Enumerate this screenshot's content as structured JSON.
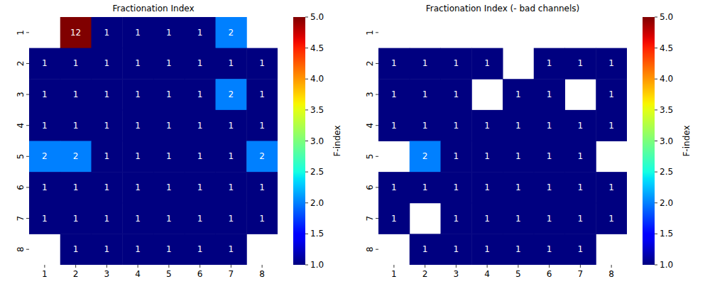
{
  "chart_data": [
    {
      "type": "heatmap",
      "title": "Fractionation Index",
      "x": [
        1,
        2,
        3,
        4,
        5,
        6,
        7,
        8
      ],
      "y": [
        1,
        2,
        3,
        4,
        5,
        6,
        7,
        8
      ],
      "values": [
        [
          null,
          12,
          1,
          1,
          1,
          1,
          2,
          null
        ],
        [
          1,
          1,
          1,
          1,
          1,
          1,
          1,
          1
        ],
        [
          1,
          1,
          1,
          1,
          1,
          1,
          2,
          1
        ],
        [
          1,
          1,
          1,
          1,
          1,
          1,
          1,
          1
        ],
        [
          2,
          2,
          1,
          1,
          1,
          1,
          1,
          2
        ],
        [
          1,
          1,
          1,
          1,
          1,
          1,
          1,
          1
        ],
        [
          1,
          1,
          1,
          1,
          1,
          1,
          1,
          1
        ],
        [
          null,
          1,
          1,
          1,
          1,
          1,
          1,
          null
        ]
      ],
      "data_labels": true,
      "colorbar": {
        "label": "F-index",
        "range": [
          1,
          5
        ],
        "ticks": [
          {
            "value": 1,
            "label": "1.0"
          },
          {
            "value": 1.5,
            "label": "1.5"
          },
          {
            "value": 2,
            "label": "2.0"
          },
          {
            "value": 2.5,
            "label": "2.5"
          },
          {
            "value": 3,
            "label": "3.0"
          },
          {
            "value": 3.5,
            "label": "3.5"
          },
          {
            "value": 4,
            "label": "4.0"
          },
          {
            "value": 4.5,
            "label": "4.5"
          },
          {
            "value": 5,
            "label": "5.0"
          }
        ]
      }
    },
    {
      "type": "heatmap",
      "title": "Fractionation Index (- bad channels)",
      "x": [
        1,
        2,
        3,
        4,
        5,
        6,
        7,
        8
      ],
      "y": [
        1,
        2,
        3,
        4,
        5,
        6,
        7,
        8
      ],
      "values": [
        [
          null,
          null,
          null,
          null,
          null,
          null,
          null,
          null
        ],
        [
          1,
          1,
          1,
          1,
          null,
          1,
          1,
          1
        ],
        [
          1,
          1,
          1,
          null,
          1,
          1,
          null,
          1
        ],
        [
          1,
          1,
          1,
          1,
          1,
          1,
          1,
          1
        ],
        [
          null,
          2,
          1,
          1,
          1,
          1,
          1,
          null
        ],
        [
          1,
          1,
          1,
          1,
          1,
          1,
          1,
          1
        ],
        [
          1,
          null,
          1,
          1,
          1,
          1,
          1,
          1
        ],
        [
          null,
          1,
          1,
          1,
          1,
          1,
          1,
          null
        ]
      ],
      "data_labels": true,
      "colorbar": {
        "label": "F-index",
        "range": [
          1,
          5
        ],
        "ticks": [
          {
            "value": 1,
            "label": "1.0"
          },
          {
            "value": 1.5,
            "label": "1.5"
          },
          {
            "value": 2,
            "label": "2.0"
          },
          {
            "value": 2.5,
            "label": "2.5"
          },
          {
            "value": 3,
            "label": "3.0"
          },
          {
            "value": 3.5,
            "label": "3.5"
          },
          {
            "value": 4,
            "label": "4.0"
          },
          {
            "value": 4.5,
            "label": "4.5"
          },
          {
            "value": 5,
            "label": "5.0"
          }
        ]
      }
    }
  ]
}
